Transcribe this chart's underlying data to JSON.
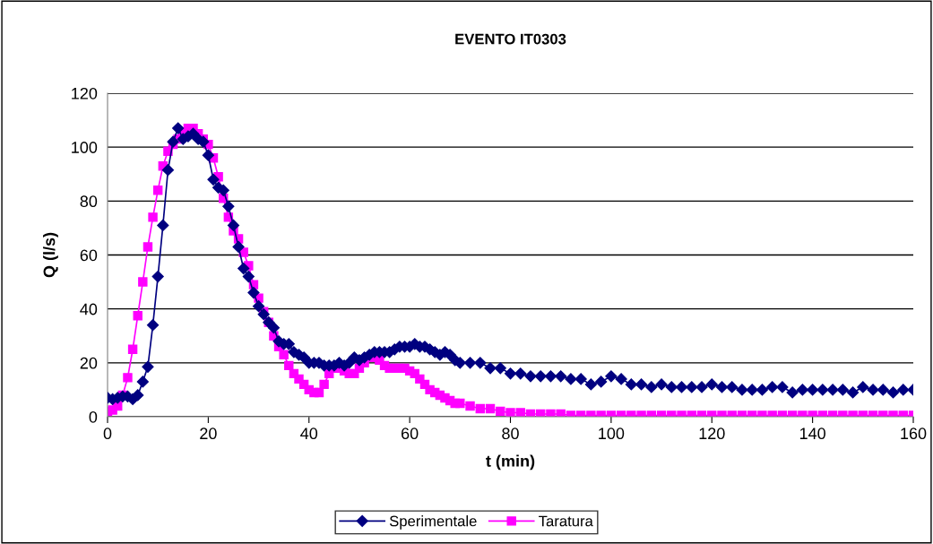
{
  "chart_data": {
    "type": "line",
    "title": "EVENTO IT0303",
    "xlabel": "t (min)",
    "ylabel": "Q (l/s)",
    "xlim": [
      0,
      160
    ],
    "xticks": [
      0,
      20,
      40,
      60,
      80,
      100,
      120,
      140,
      160
    ],
    "ylim": [
      0,
      120
    ],
    "yticks": [
      0,
      20,
      40,
      60,
      80,
      100,
      120
    ],
    "grid": "y",
    "legend": "bottom",
    "line_style": "solid",
    "series": [
      {
        "name": "Sperimentale",
        "color": "#000080",
        "marker": "diamond",
        "x": [
          0,
          1,
          2,
          3,
          4,
          5,
          6,
          7,
          8,
          9,
          10,
          11,
          12,
          13,
          14,
          15,
          16,
          17,
          18,
          19,
          20,
          21,
          22,
          23,
          24,
          25,
          26,
          27,
          28,
          29,
          30,
          31,
          32,
          33,
          34,
          35,
          36,
          37,
          38,
          39,
          40,
          41,
          42,
          43,
          44,
          45,
          46,
          47,
          48,
          49,
          50,
          51,
          52,
          53,
          54,
          55,
          56,
          57,
          58,
          59,
          60,
          61,
          62,
          63,
          64,
          65,
          66,
          67,
          68,
          69,
          70,
          72,
          74,
          76,
          78,
          80,
          82,
          84,
          86,
          88,
          90,
          92,
          94,
          96,
          98,
          100,
          102,
          104,
          106,
          108,
          110,
          112,
          114,
          116,
          118,
          120,
          122,
          124,
          126,
          128,
          130,
          132,
          134,
          136,
          138,
          140,
          142,
          144,
          146,
          148,
          150,
          152,
          154,
          156,
          158,
          160
        ],
        "values": [
          7,
          6.5,
          7,
          7.5,
          7.5,
          6.5,
          8,
          13,
          18.5,
          34,
          52,
          71,
          91.5,
          102,
          107,
          103,
          104,
          105,
          103,
          102,
          97,
          88,
          85,
          84,
          78,
          71,
          63,
          55,
          52,
          46,
          41,
          38,
          35,
          33,
          28,
          27,
          27,
          24,
          23,
          22,
          20,
          20,
          20,
          19,
          19,
          19,
          20,
          19,
          20,
          22,
          21,
          22,
          23,
          24,
          24,
          24,
          24,
          25,
          26,
          26,
          26,
          27,
          26,
          26,
          25,
          24,
          23,
          24,
          23,
          21,
          20,
          20,
          20,
          18,
          18,
          16,
          16,
          15,
          15,
          15,
          15,
          14,
          14,
          12,
          13,
          15,
          14,
          12,
          12,
          11,
          12,
          11,
          11,
          11,
          11,
          12,
          11,
          11,
          10,
          10,
          10,
          11,
          11,
          9,
          10,
          10,
          10,
          10,
          10,
          9,
          11,
          10,
          10,
          9,
          10,
          10
        ]
      },
      {
        "name": "Taratura",
        "color": "#ff00ff",
        "marker": "square",
        "x": [
          0,
          1,
          2,
          3,
          4,
          5,
          6,
          7,
          8,
          9,
          10,
          11,
          12,
          13,
          14,
          15,
          16,
          17,
          18,
          19,
          20,
          21,
          22,
          23,
          24,
          25,
          26,
          27,
          28,
          29,
          30,
          31,
          32,
          33,
          34,
          35,
          36,
          37,
          38,
          39,
          40,
          41,
          42,
          43,
          44,
          45,
          46,
          47,
          48,
          49,
          50,
          51,
          52,
          53,
          54,
          55,
          56,
          57,
          58,
          59,
          60,
          61,
          62,
          63,
          64,
          65,
          66,
          67,
          68,
          69,
          70,
          72,
          74,
          76,
          78,
          80,
          82,
          84,
          86,
          88,
          90,
          92,
          94,
          96,
          98,
          100,
          102,
          104,
          106,
          108,
          110,
          112,
          114,
          116,
          118,
          120,
          122,
          124,
          126,
          128,
          130,
          132,
          134,
          136,
          138,
          140,
          142,
          144,
          146,
          148,
          150,
          152,
          154,
          156,
          158,
          160
        ],
        "values": [
          2,
          2.5,
          4,
          8,
          14.5,
          25,
          37.5,
          50,
          63,
          74,
          84,
          93,
          98.5,
          101,
          103,
          105,
          107,
          107,
          105,
          103,
          101,
          96,
          89,
          81,
          74,
          69,
          66,
          61,
          56,
          49,
          44,
          39,
          35,
          30,
          26,
          23,
          19,
          16,
          14,
          12,
          10,
          9,
          9,
          12,
          16,
          18,
          18,
          17,
          16,
          16,
          18,
          20,
          22,
          22,
          21,
          19,
          18,
          18,
          18,
          18,
          17,
          16,
          14,
          12,
          10,
          9,
          8,
          7,
          6,
          5,
          5,
          4,
          3,
          3,
          2,
          1.5,
          1.5,
          1,
          1,
          1,
          1,
          0.5,
          0.5,
          0.5,
          0.5,
          0.5,
          0.5,
          0.5,
          0.5,
          0.5,
          0.5,
          0.5,
          0.5,
          0.5,
          0.5,
          0.5,
          0.5,
          0.5,
          0.5,
          0.5,
          0.5,
          0.5,
          0.5,
          0.5,
          0.5,
          0.5,
          0.5,
          0.5,
          0.5,
          0.5,
          0.5,
          0.5,
          0.5,
          0.5,
          0.5,
          0.5
        ]
      }
    ]
  }
}
